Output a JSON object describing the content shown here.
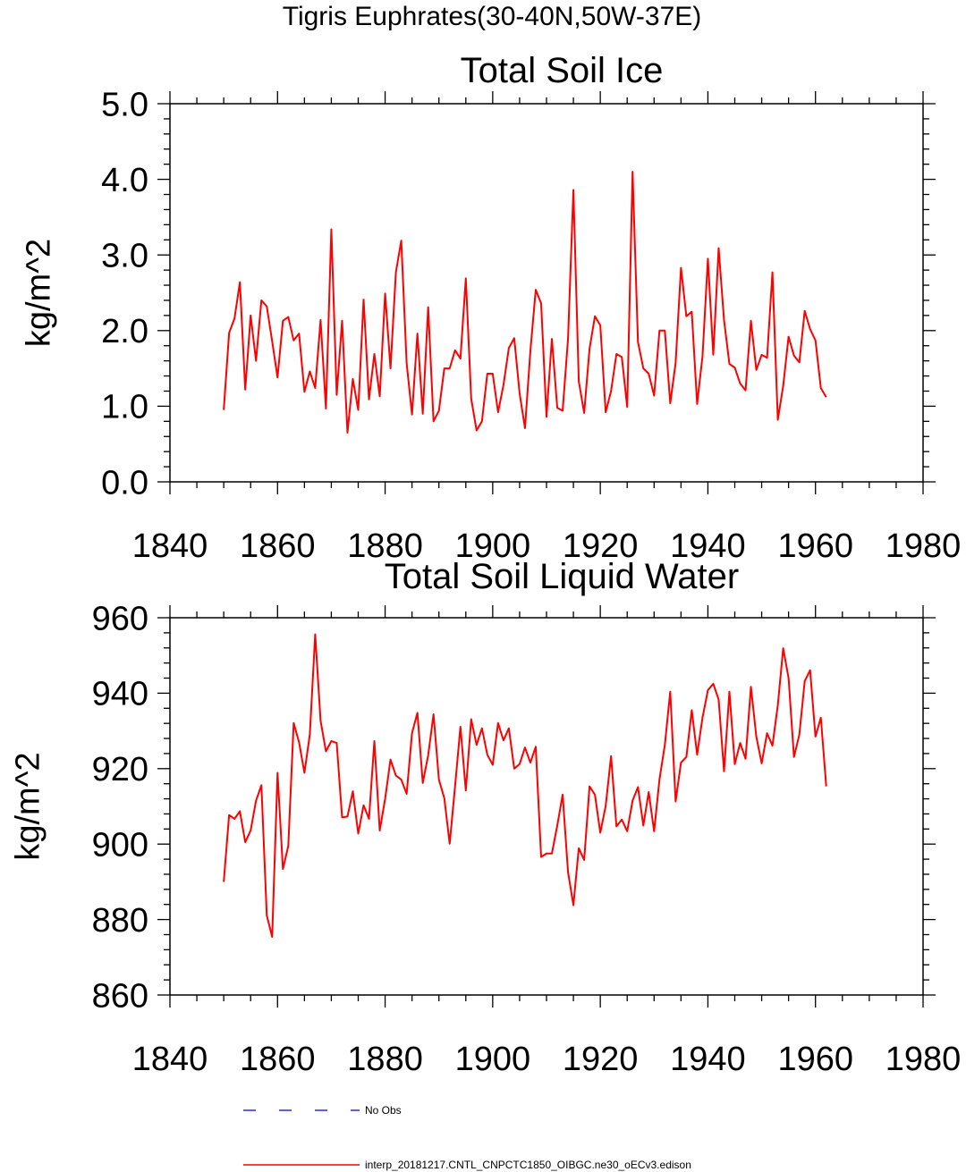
{
  "figure_title": "Tigris Euphrates(30-40N,50W-37E)",
  "colors": {
    "model_line": "#ff0000",
    "obs_line": "#0000cc",
    "axis": "#000000"
  },
  "legend": {
    "obs_label": "No Obs",
    "model_label": "interp_20181217.CNTL_CNPCTC1850_OIBGC.ne30_oECv3.edison"
  },
  "chart_data": [
    {
      "type": "line",
      "title": "Total Soil Ice",
      "xlabel": "",
      "ylabel": "kg/m^2",
      "xlim": [
        1840,
        1980
      ],
      "ylim": [
        0.0,
        5.0
      ],
      "xticks": [
        1840,
        1860,
        1880,
        1900,
        1920,
        1940,
        1960,
        1980
      ],
      "yticks": [
        0.0,
        1.0,
        2.0,
        3.0,
        4.0,
        5.0
      ],
      "ytick_labels": [
        "0.0",
        "1.0",
        "2.0",
        "3.0",
        "4.0",
        "5.0"
      ],
      "grid": false,
      "series": [
        {
          "name": "interp_20181217.CNTL_CNPCTC1850_OIBGC.ne30_oECv3.edison",
          "x_start": 1850,
          "values": [
            0.95,
            1.97,
            2.16,
            2.64,
            1.22,
            2.2,
            1.6,
            2.4,
            2.32,
            1.86,
            1.38,
            2.13,
            2.18,
            1.87,
            1.96,
            1.19,
            1.46,
            1.24,
            2.14,
            0.97,
            3.34,
            1.15,
            2.13,
            0.65,
            1.36,
            0.95,
            2.41,
            1.09,
            1.69,
            1.13,
            2.49,
            1.5,
            2.77,
            3.19,
            1.57,
            0.89,
            1.96,
            0.9,
            2.31,
            0.8,
            0.94,
            1.5,
            1.5,
            1.74,
            1.63,
            2.69,
            1.1,
            0.68,
            0.8,
            1.43,
            1.43,
            0.92,
            1.28,
            1.77,
            1.9,
            1.17,
            0.71,
            1.73,
            2.54,
            2.36,
            0.86,
            1.89,
            0.98,
            0.94,
            1.89,
            3.86,
            1.33,
            0.91,
            1.76,
            2.19,
            2.07,
            0.92,
            1.2,
            1.69,
            1.65,
            0.99,
            4.1,
            1.85,
            1.5,
            1.43,
            1.14,
            2.0,
            2.0,
            1.04,
            1.57,
            2.83,
            2.19,
            2.25,
            1.03,
            1.66,
            2.95,
            1.68,
            3.09,
            2.14,
            1.56,
            1.51,
            1.3,
            1.21,
            2.13,
            1.48,
            1.68,
            1.64,
            2.77,
            0.82,
            1.27,
            1.92,
            1.67,
            1.58,
            2.26,
            2.02,
            1.87,
            1.24,
            1.12
          ]
        }
      ]
    },
    {
      "type": "line",
      "title": "Total Soil Liquid Water",
      "xlabel": "",
      "ylabel": "kg/m^2",
      "xlim": [
        1840,
        1980
      ],
      "ylim": [
        860,
        960
      ],
      "xticks": [
        1840,
        1860,
        1880,
        1900,
        1920,
        1940,
        1960,
        1980
      ],
      "yticks": [
        860,
        880,
        900,
        920,
        940,
        960
      ],
      "ytick_labels": [
        "860",
        "880",
        "900",
        "920",
        "940",
        "960"
      ],
      "grid": false,
      "series": [
        {
          "name": "interp_20181217.CNTL_CNPCTC1850_OIBGC.ne30_oECv3.edison",
          "x_start": 1850,
          "values": [
            890,
            907.7,
            906.7,
            908.7,
            900.5,
            903.6,
            911.5,
            915.6,
            881.1,
            875.4,
            918.9,
            893.4,
            899.5,
            932.1,
            927,
            918.9,
            929,
            955.6,
            932.7,
            924.6,
            927.3,
            926.8,
            907.1,
            907.3,
            914,
            902.8,
            910.3,
            906.7,
            927.3,
            903.6,
            912,
            922.4,
            918.2,
            917.1,
            913.3,
            929.4,
            934.8,
            916.2,
            923.5,
            934.4,
            917.1,
            912.2,
            900.1,
            915.3,
            931.1,
            914.2,
            933.1,
            926.3,
            930.7,
            923.7,
            921,
            932.1,
            927.5,
            930.7,
            920,
            921.2,
            925.6,
            921.6,
            925.8,
            896.6,
            897.5,
            897.5,
            904.9,
            913.1,
            892.6,
            883.8,
            898.9,
            895.8,
            915.3,
            913.1,
            903,
            910.1,
            923.3,
            904.7,
            906.5,
            903.4,
            911.5,
            915.1,
            904.9,
            913.8,
            903.4,
            917.1,
            926.3,
            940.4,
            911.3,
            921.6,
            923.1,
            935.5,
            923.7,
            933.5,
            940.8,
            942.5,
            938.3,
            919.3,
            940.4,
            921.2,
            926.8,
            922.6,
            941.7,
            928.5,
            921.4,
            929.4,
            926.1,
            936.8,
            951.9,
            944,
            923.1,
            929,
            943.2,
            946.1,
            928.5,
            933.5,
            915.3
          ]
        }
      ]
    }
  ]
}
